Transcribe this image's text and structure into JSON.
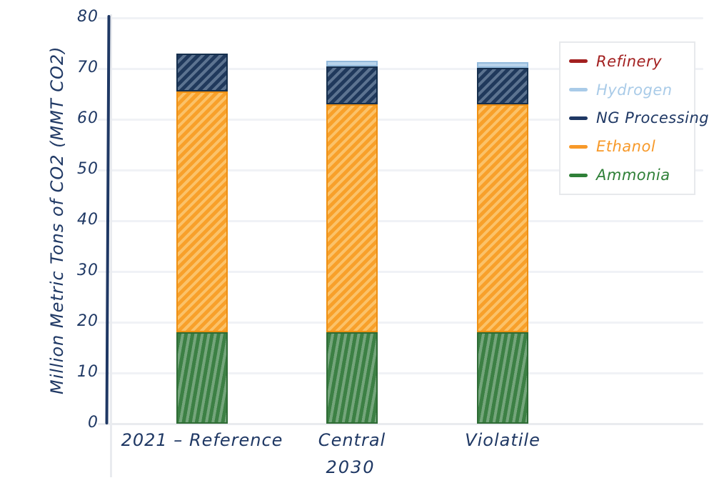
{
  "chart_data": {
    "type": "bar",
    "stacked": true,
    "title": "",
    "xlabel": "2030",
    "ylabel": "Million Metric Tons of CO2 (MMT CO2)",
    "categories": [
      "2021 – Reference",
      "Central",
      "Violatile"
    ],
    "ylim": [
      0,
      80
    ],
    "ytick_interval": 10,
    "yticks": [
      0,
      10,
      20,
      30,
      40,
      50,
      60,
      70,
      80
    ],
    "grid": "horizontal",
    "legend_position": "upper-right",
    "series": [
      {
        "name": "Ammonia",
        "values": [
          18,
          18,
          18
        ],
        "fill": "#3C8044",
        "stripe": "#74A57B",
        "border": "#2E6B35",
        "hatch": "vertical"
      },
      {
        "name": "Ethanol",
        "values": [
          47.5,
          45,
          45
        ],
        "fill": "#F8A02A",
        "stripe": "#FBC269",
        "border": "#EE9013",
        "hatch": "diagonal"
      },
      {
        "name": "NG Processing",
        "values": [
          7.5,
          7.4,
          7.1
        ],
        "fill": "#20395C",
        "stripe": "#5C7390",
        "border": "#16304E",
        "hatch": "diagonal"
      },
      {
        "name": "Hydrogen",
        "values": [
          0,
          1.1,
          1.1
        ],
        "fill": "#B9D4EB",
        "stripe": "#C4DAEE",
        "border": "#93BADC",
        "hatch": "none"
      },
      {
        "name": "Refinery",
        "values": [
          0,
          0,
          0
        ],
        "fill": "#9E2121",
        "stripe": "#9E2121",
        "border": "#8A1C1C",
        "hatch": "none"
      }
    ],
    "totals": [
      73,
      71.5,
      71.2
    ]
  },
  "legend": {
    "items": [
      {
        "label": "Refinery",
        "color": "#A32020"
      },
      {
        "label": "Hydrogen",
        "color": "#A9CBE8"
      },
      {
        "label": "NG Processing",
        "color": "#1F3864"
      },
      {
        "label": "Ethanol",
        "color": "#F79929"
      },
      {
        "label": "Ammonia",
        "color": "#2F8038"
      }
    ]
  },
  "colors": {
    "axis_text": "#1F3864",
    "gridline": "#F0F2F6",
    "spine": "#E9EBEF"
  }
}
